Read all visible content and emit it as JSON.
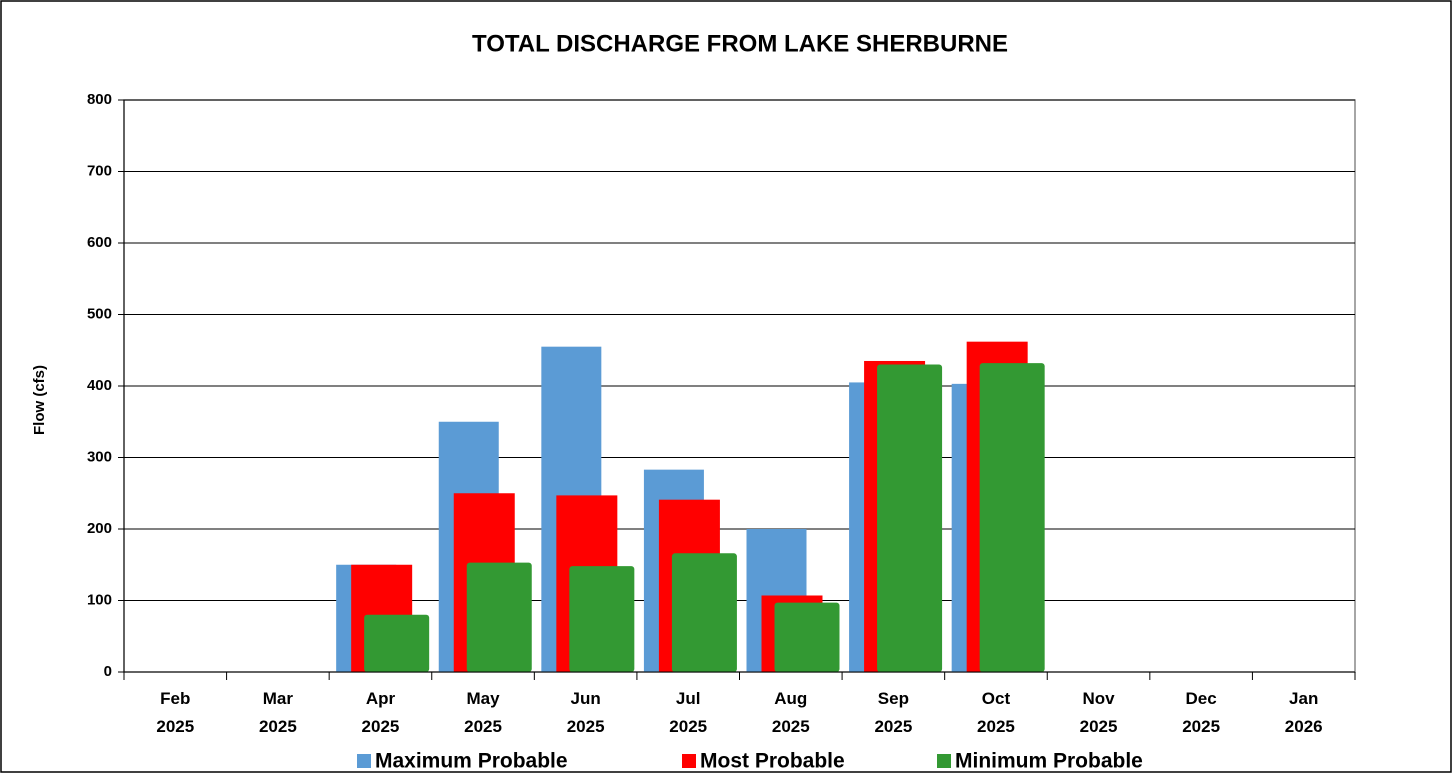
{
  "chart_data": {
    "type": "bar",
    "title": "TOTAL DISCHARGE FROM LAKE SHERBURNE",
    "y_label": "Flow (cfs)",
    "categories": [
      "Feb 2025",
      "Mar 2025",
      "Apr 2025",
      "May 2025",
      "Jun 2025",
      "Jul 2025",
      "Aug 2025",
      "Sep 2025",
      "Oct 2025",
      "Nov 2025",
      "Dec 2025",
      "Jan 2026"
    ],
    "series": [
      {
        "name": "Maximum Probable",
        "color": "#5b9bd5",
        "values": [
          null,
          null,
          150,
          350,
          455,
          283,
          200,
          405,
          403,
          null,
          null,
          null
        ]
      },
      {
        "name": "Most Probable",
        "color": "#ff0000",
        "values": [
          null,
          null,
          150,
          250,
          247,
          241,
          107,
          435,
          462,
          null,
          null,
          null
        ]
      },
      {
        "name": "Minimum Probable",
        "color": "#339933",
        "values": [
          null,
          null,
          80,
          153,
          148,
          166,
          97,
          430,
          432,
          null,
          null,
          null
        ]
      }
    ],
    "ylim": [
      0,
      800
    ],
    "yticks": [
      0,
      100,
      200,
      300,
      400,
      500,
      600,
      700,
      800
    ],
    "grid": true,
    "legend": "bottom"
  }
}
